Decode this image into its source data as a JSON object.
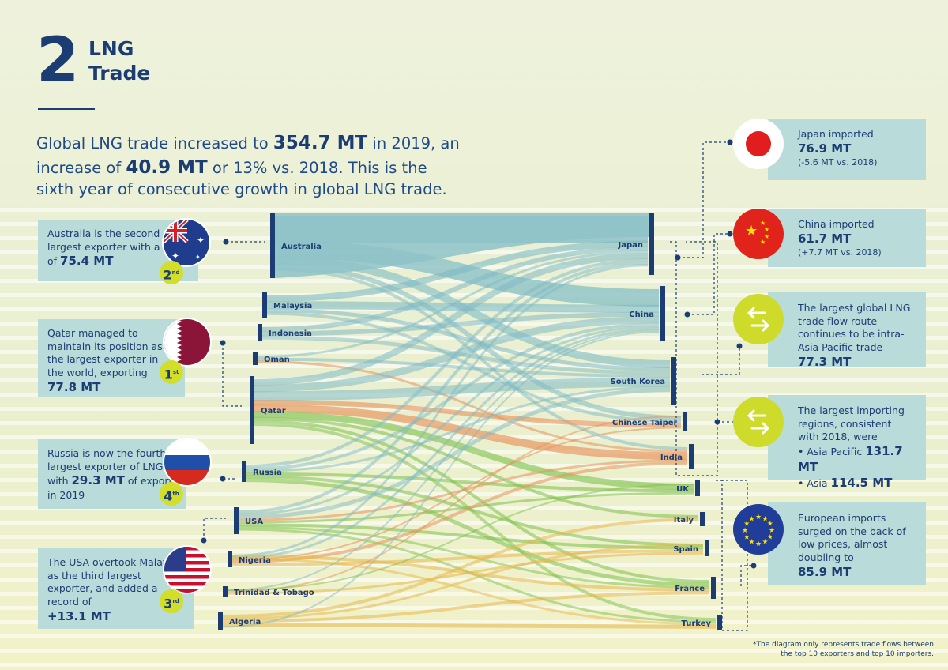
{
  "header": {
    "number": "2",
    "title_line1": "LNG",
    "title_line2": "Trade"
  },
  "intro": {
    "p1": "Global LNG trade increased to ",
    "v1": "354.7 MT",
    "p2": " in 2019, an increase of ",
    "v2": "40.9 MT",
    "p3": " or 13% vs. 2018. This is the sixth year of consecutive growth in global LNG trade."
  },
  "left_cards": {
    "australia": {
      "text": "Australia is the second largest exporter with a total of ",
      "value": "75.4 MT",
      "rank": "2",
      "rank_suffix": "nd"
    },
    "qatar": {
      "text": "Qatar managed to maintain its position as the largest exporter in the world, exporting",
      "value": "77.8 MT",
      "rank": "1",
      "rank_suffix": "st"
    },
    "russia": {
      "text": "Russia is now the fourth largest exporter of LNG, with ",
      "value": "29.3 MT",
      "text2": " of export in 2019",
      "rank": "4",
      "rank_suffix": "th"
    },
    "usa": {
      "text": "The USA overtook Malaysia as the third largest exporter, and added a record of",
      "value": "+13.1 MT",
      "rank": "3",
      "rank_suffix": "rd"
    }
  },
  "right_cards": {
    "japan": {
      "line1": "Japan imported",
      "value": "76.9 MT",
      "note": "(-5.6 MT vs. 2018)"
    },
    "china": {
      "line1": "China imported",
      "value": "61.7 MT",
      "note": "(+7.7 MT vs. 2018)"
    },
    "route": {
      "line1": "The largest global LNG trade flow route continues to be intra-Asia Pacific trade ",
      "value": "77.3 MT"
    },
    "regions": {
      "line1": "The largest importing regions, consistent with 2018, were",
      "ap_label": "• Asia Pacific ",
      "ap_value": "131.7 MT",
      "asia_label": "• Asia ",
      "asia_value": "114.5 MT"
    },
    "europe": {
      "line1": "European imports surged on the back of low prices, almost doubling to",
      "value": "85.9 MT"
    }
  },
  "diagram": {
    "exporters": [
      "Australia",
      "Malaysia",
      "Indonesia",
      "Oman",
      "Qatar",
      "Russia",
      "USA",
      "Nigeria",
      "Trinidad & Tobago",
      "Algeria"
    ],
    "importers": [
      "Japan",
      "China",
      "South Korea",
      "Chinese Taipei",
      "India",
      "UK",
      "Italy",
      "Spain",
      "France",
      "Turkey"
    ]
  },
  "footnote": {
    "line1": "*The diagram only represents trade flows between",
    "line2": "the top 10 exporters and top 10 importers."
  },
  "colors": {
    "navy": "#1c3d73",
    "teal": "#7fbac4",
    "orange": "#e8915a",
    "green": "#7cc04b",
    "lime": "#cedb2b",
    "card": "#b9dbd9"
  }
}
